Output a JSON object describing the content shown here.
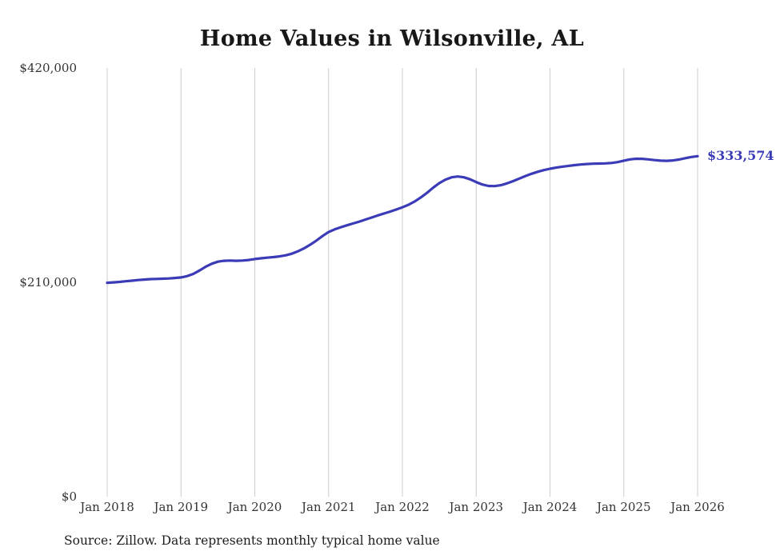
{
  "chart_data": {
    "type": "line",
    "title": "Home Values in Wilsonville, AL",
    "source": "Source: Zillow. Data represents monthly typical home value",
    "end_label": "$333,574",
    "final_value": 333574,
    "line_color": "#3b3bb8",
    "grid_color": "#cccccc",
    "axis_text_color": "#333333",
    "ylim": [
      0,
      420000
    ],
    "y_tick_labels": [
      "$420,000",
      "$210,000",
      "$0"
    ],
    "y_tick_values": [
      420000,
      210000,
      0
    ],
    "x_tick_labels": [
      "Jan 2018",
      "Jan 2019",
      "Jan 2020",
      "Jan 2021",
      "Jan 2022",
      "Jan 2023",
      "Jan 2024",
      "Jan 2025",
      "Jan 2026"
    ],
    "x_unit": "month",
    "x_start": "Jan 2018",
    "x_end": "Jan 2026",
    "grid": "vertical-only",
    "legend": "none",
    "values": [
      209500,
      209900,
      210400,
      211000,
      211600,
      212200,
      212700,
      213100,
      213300,
      213500,
      213800,
      214200,
      214800,
      216000,
      218200,
      221500,
      225200,
      228200,
      230200,
      231100,
      231300,
      231100,
      231300,
      231900,
      232800,
      233500,
      234100,
      234700,
      235400,
      236400,
      238000,
      240300,
      243200,
      246800,
      250800,
      255300,
      259300,
      261900,
      264000,
      265900,
      267700,
      269500,
      271500,
      273500,
      275500,
      277400,
      279300,
      281300,
      283500,
      286000,
      289200,
      293200,
      297700,
      302700,
      307200,
      310600,
      312900,
      313700,
      312900,
      310900,
      308200,
      305800,
      304400,
      304300,
      305100,
      306900,
      309100,
      311600,
      314100,
      316300,
      318300,
      319900,
      321300,
      322400,
      323300,
      324100,
      324800,
      325400,
      325900,
      326200,
      326400,
      326500,
      326900,
      327800,
      329200,
      330400,
      331100,
      331000,
      330400,
      329700,
      329200,
      329000,
      329400,
      330300,
      331600,
      332800,
      333574
    ]
  }
}
